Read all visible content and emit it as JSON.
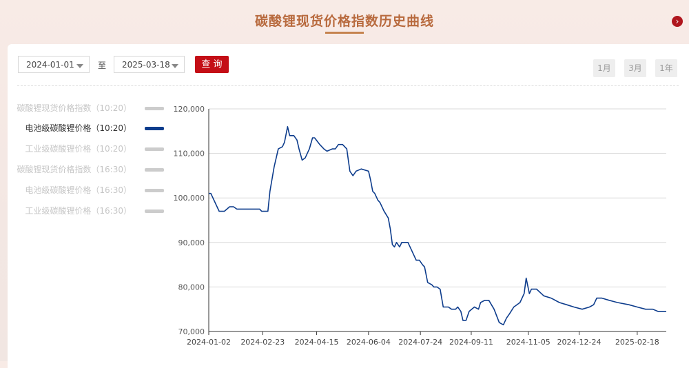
{
  "page": {
    "title": "碳酸锂现货价格指数历史曲线",
    "next_icon": "chevron-right-icon"
  },
  "filters": {
    "start_date": "2024-01-01",
    "to_label": "至",
    "end_date": "2025-03-18",
    "query_label": "查 询",
    "ranges": [
      "1月",
      "3月",
      "1年"
    ]
  },
  "legend": [
    {
      "label": "碳酸锂现货价格指数（10:20）",
      "active": false
    },
    {
      "label": "电池级碳酸锂价格（10:20）",
      "active": true
    },
    {
      "label": "工业级碳酸锂价格（10:20）",
      "active": false
    },
    {
      "label": "碳酸锂现货价格指数（16:30）",
      "active": false
    },
    {
      "label": "电池级碳酸锂价格（16:30）",
      "active": false
    },
    {
      "label": "工业级碳酸锂价格（16:30）",
      "active": false
    }
  ],
  "colors": {
    "line": "#0d3c8c",
    "accent": "#c40e16",
    "title": "#b86a3e"
  },
  "chart_data": {
    "type": "line",
    "x_ticks": [
      "2024-01-02",
      "2024-02-23",
      "2024-04-15",
      "2024-06-04",
      "2024-07-24",
      "2024-09-11",
      "2024-11-05",
      "2024-12-24",
      "2025-02-18"
    ],
    "y_ticks": [
      "70,000",
      "80,000",
      "90,000",
      "100,000",
      "110,000",
      "120,000"
    ],
    "ylim": [
      70000,
      120000
    ],
    "xlim": [
      "2024-01-02",
      "2025-03-18"
    ],
    "grid": true,
    "series": [
      {
        "name": "电池级碳酸锂价格（10:20）",
        "points": [
          [
            "2024-01-02",
            101000
          ],
          [
            "2024-01-04",
            101000
          ],
          [
            "2024-01-12",
            97000
          ],
          [
            "2024-01-17",
            97000
          ],
          [
            "2024-01-22",
            98000
          ],
          [
            "2024-01-26",
            98000
          ],
          [
            "2024-01-29",
            97500
          ],
          [
            "2024-02-08",
            97500
          ],
          [
            "2024-02-20",
            97500
          ],
          [
            "2024-02-22",
            97000
          ],
          [
            "2024-02-28",
            97000
          ],
          [
            "2024-03-01",
            101500
          ],
          [
            "2024-03-05",
            107000
          ],
          [
            "2024-03-07",
            109000
          ],
          [
            "2024-03-09",
            111000
          ],
          [
            "2024-03-13",
            111500
          ],
          [
            "2024-03-15",
            112500
          ],
          [
            "2024-03-18",
            116000
          ],
          [
            "2024-03-20",
            114000
          ],
          [
            "2024-03-24",
            114000
          ],
          [
            "2024-03-27",
            113000
          ],
          [
            "2024-03-29",
            111000
          ],
          [
            "2024-04-01",
            108500
          ],
          [
            "2024-04-04",
            109000
          ],
          [
            "2024-04-08",
            111000
          ],
          [
            "2024-04-11",
            113500
          ],
          [
            "2024-04-13",
            113500
          ],
          [
            "2024-04-18",
            112000
          ],
          [
            "2024-04-22",
            111000
          ],
          [
            "2024-04-25",
            110500
          ],
          [
            "2024-04-30",
            111000
          ],
          [
            "2024-05-03",
            111000
          ],
          [
            "2024-05-06",
            112000
          ],
          [
            "2024-05-10",
            112000
          ],
          [
            "2024-05-14",
            111000
          ],
          [
            "2024-05-17",
            106000
          ],
          [
            "2024-05-20",
            105000
          ],
          [
            "2024-05-23",
            106000
          ],
          [
            "2024-05-28",
            106500
          ],
          [
            "2024-06-04",
            106000
          ],
          [
            "2024-06-06",
            104000
          ],
          [
            "2024-06-08",
            101500
          ],
          [
            "2024-06-10",
            101000
          ],
          [
            "2024-06-13",
            99500
          ],
          [
            "2024-06-15",
            99000
          ],
          [
            "2024-06-19",
            97000
          ],
          [
            "2024-06-23",
            95500
          ],
          [
            "2024-06-25",
            93000
          ],
          [
            "2024-06-27",
            89500
          ],
          [
            "2024-06-29",
            89000
          ],
          [
            "2024-07-01",
            90000
          ],
          [
            "2024-07-04",
            89000
          ],
          [
            "2024-07-06",
            90000
          ],
          [
            "2024-07-12",
            90000
          ],
          [
            "2024-07-16",
            88000
          ],
          [
            "2024-07-18",
            87000
          ],
          [
            "2024-07-20",
            86000
          ],
          [
            "2024-07-23",
            86000
          ],
          [
            "2024-07-26",
            85000
          ],
          [
            "2024-07-28",
            84500
          ],
          [
            "2024-07-31",
            81000
          ],
          [
            "2024-08-04",
            80500
          ],
          [
            "2024-08-06",
            80000
          ],
          [
            "2024-08-09",
            80000
          ],
          [
            "2024-08-12",
            79500
          ],
          [
            "2024-08-15",
            75500
          ],
          [
            "2024-08-20",
            75500
          ],
          [
            "2024-08-23",
            75000
          ],
          [
            "2024-08-27",
            75000
          ],
          [
            "2024-08-29",
            75500
          ],
          [
            "2024-09-01",
            74500
          ],
          [
            "2024-09-03",
            72500
          ],
          [
            "2024-09-06",
            72500
          ],
          [
            "2024-09-09",
            74500
          ],
          [
            "2024-09-14",
            75500
          ],
          [
            "2024-09-18",
            75000
          ],
          [
            "2024-09-20",
            76500
          ],
          [
            "2024-09-24",
            77000
          ],
          [
            "2024-09-28",
            77000
          ],
          [
            "2024-10-03",
            75000
          ],
          [
            "2024-10-08",
            72000
          ],
          [
            "2024-10-12",
            71500
          ],
          [
            "2024-10-15",
            73000
          ],
          [
            "2024-10-18",
            74000
          ],
          [
            "2024-10-22",
            75500
          ],
          [
            "2024-10-28",
            76500
          ],
          [
            "2024-11-01",
            78500
          ],
          [
            "2024-11-03",
            82000
          ],
          [
            "2024-11-06",
            78500
          ],
          [
            "2024-11-08",
            79500
          ],
          [
            "2024-11-13",
            79500
          ],
          [
            "2024-11-20",
            78000
          ],
          [
            "2024-11-27",
            77500
          ],
          [
            "2024-12-05",
            76500
          ],
          [
            "2024-12-12",
            76000
          ],
          [
            "2024-12-19",
            75500
          ],
          [
            "2024-12-27",
            75000
          ],
          [
            "2025-01-03",
            75500
          ],
          [
            "2025-01-07",
            76000
          ],
          [
            "2025-01-10",
            77500
          ],
          [
            "2025-01-15",
            77500
          ],
          [
            "2025-01-22",
            77000
          ],
          [
            "2025-01-30",
            76500
          ],
          [
            "2025-02-10",
            76000
          ],
          [
            "2025-02-18",
            75500
          ],
          [
            "2025-02-26",
            75000
          ],
          [
            "2025-03-05",
            75000
          ],
          [
            "2025-03-10",
            74500
          ],
          [
            "2025-03-18",
            74500
          ]
        ]
      }
    ]
  }
}
